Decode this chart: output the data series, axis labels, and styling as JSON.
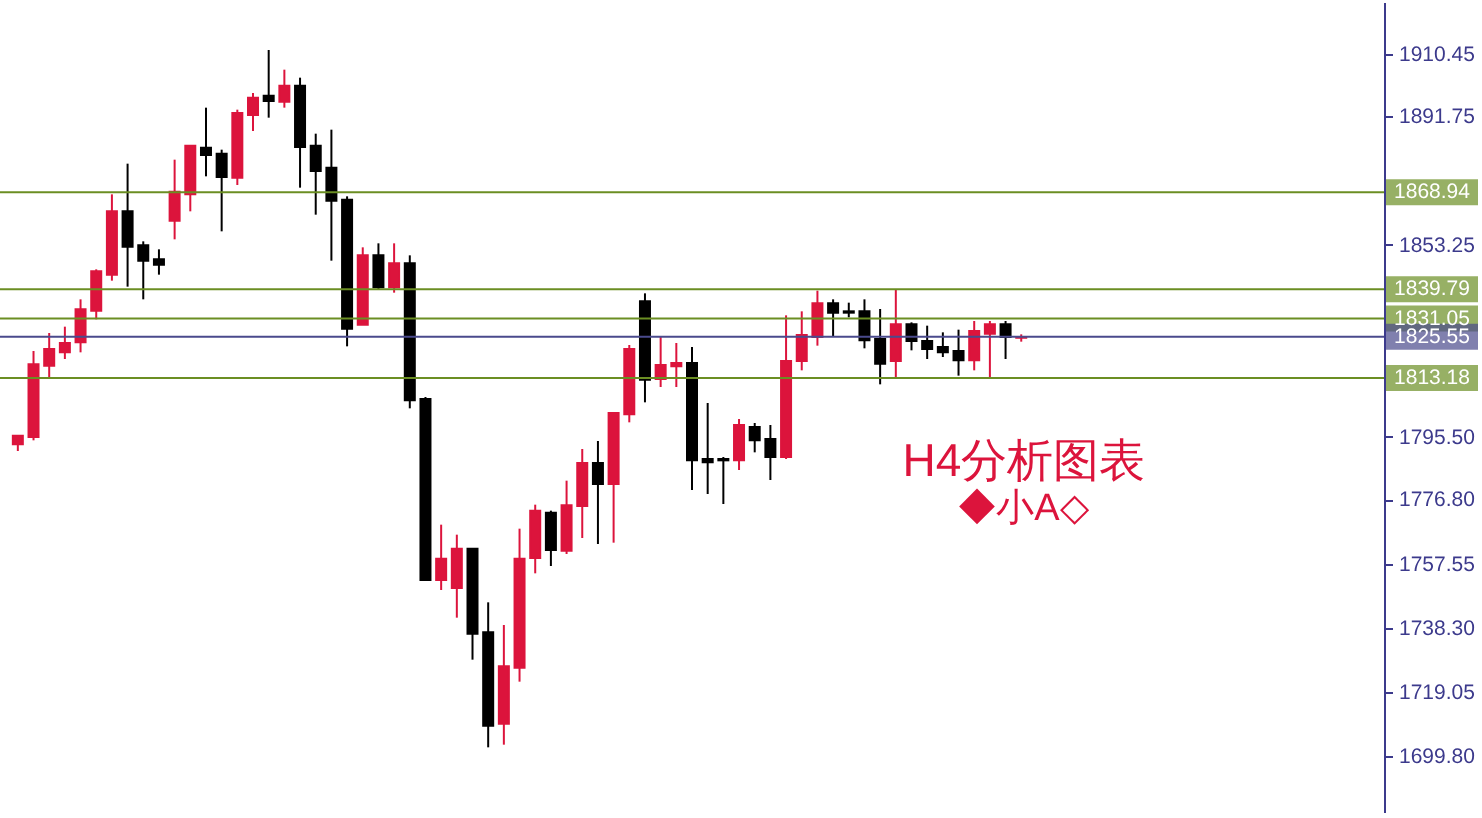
{
  "chart_data": {
    "type": "candlestick",
    "categories": [
      null,
      null,
      null,
      null,
      null,
      null,
      null,
      null,
      null,
      null,
      null,
      null,
      null,
      null,
      null,
      null,
      null,
      null,
      null,
      null,
      null,
      null,
      null,
      null,
      null,
      null,
      null,
      null,
      null,
      null,
      null,
      null,
      null,
      null,
      null,
      null,
      null,
      null,
      null,
      null,
      null,
      null,
      null,
      null,
      null,
      null,
      null,
      null,
      null,
      null,
      null,
      null,
      null,
      null,
      null,
      null,
      null,
      null,
      null,
      null,
      null,
      null,
      null,
      null,
      null,
      null,
      null,
      null,
      null,
      null,
      null,
      null,
      null,
      null,
      null,
      null,
      null,
      null,
      null,
      null,
      null,
      null,
      null,
      null,
      null,
      null,
      null
    ],
    "ohlc": [
      [
        1793.3,
        1795.9,
        1791.3,
        1795.9
      ],
      [
        1795.5,
        1821.3,
        1794.5,
        1817.3
      ],
      [
        1816.9,
        1826.7,
        1812.9,
        1821.9
      ],
      [
        1820.9,
        1828.6,
        1818.9,
        1823.7
      ],
      [
        1823.9,
        1836.8,
        1820.9,
        1833.8
      ],
      [
        1833.4,
        1845.8,
        1830.8,
        1845.2
      ],
      [
        1844.2,
        1868.3,
        1842.4,
        1863.2
      ],
      [
        1863.2,
        1877.5,
        1840.6,
        1852.6
      ],
      [
        1853.0,
        1854.2,
        1836.8,
        1848.4
      ],
      [
        1848.8,
        1851.8,
        1844.2,
        1847.2
      ],
      [
        1860.4,
        1878.7,
        1854.8,
        1869.1
      ],
      [
        1868.3,
        1882.9,
        1863.2,
        1882.9
      ],
      [
        1882.3,
        1894.3,
        1873.7,
        1880.1
      ],
      [
        1880.5,
        1881.7,
        1857.2,
        1873.5
      ],
      [
        1873.3,
        1893.7,
        1871.1,
        1892.7
      ],
      [
        1892.1,
        1898.7,
        1887.3,
        1897.3
      ],
      [
        1897.9,
        1911.6,
        1891.3,
        1896.3
      ],
      [
        1896.1,
        1905.7,
        1894.3,
        1900.9
      ],
      [
        1900.9,
        1903.3,
        1870.3,
        1882.5
      ],
      [
        1882.9,
        1886.5,
        1862.2,
        1875.3
      ],
      [
        1876.3,
        1887.7,
        1848.4,
        1866.4
      ],
      [
        1866.7,
        1867.7,
        1822.7,
        1828.0
      ],
      [
        1829.2,
        1852.4,
        1829.2,
        1850.0
      ],
      [
        1850.0,
        1853.6,
        1839.6,
        1840.4
      ],
      [
        1840.4,
        1853.6,
        1838.8,
        1847.6
      ],
      [
        1847.6,
        1850.0,
        1804.1,
        1806.5
      ],
      [
        1806.9,
        1807.5,
        1752.6,
        1752.6
      ],
      [
        1752.6,
        1769.2,
        1749.6,
        1759.0
      ],
      [
        1750.2,
        1766.2,
        1741.3,
        1762.0
      ],
      [
        1762.0,
        1762.0,
        1728.7,
        1736.5
      ],
      [
        1736.9,
        1745.9,
        1702.4,
        1708.9
      ],
      [
        1709.5,
        1739.1,
        1703.2,
        1726.7
      ],
      [
        1726.3,
        1768.0,
        1722.1,
        1759.0
      ],
      [
        1759.2,
        1775.2,
        1754.6,
        1773.4
      ],
      [
        1772.8,
        1773.4,
        1756.8,
        1761.6
      ],
      [
        1761.4,
        1782.4,
        1760.4,
        1775.0
      ],
      [
        1774.8,
        1791.9,
        1765.2,
        1787.7
      ],
      [
        1787.7,
        1794.3,
        1763.4,
        1781.4
      ],
      [
        1781.4,
        1802.7,
        1763.8,
        1802.7
      ],
      [
        1802.3,
        1823.1,
        1799.9,
        1821.9
      ],
      [
        1836.2,
        1838.6,
        1805.9,
        1812.7
      ],
      [
        1812.9,
        1825.5,
        1810.5,
        1817.1
      ],
      [
        1816.7,
        1823.7,
        1810.5,
        1817.7
      ],
      [
        1817.7,
        1822.5,
        1779.6,
        1788.5
      ],
      [
        1788.9,
        1805.7,
        1778.4,
        1787.9
      ],
      [
        1788.9,
        1789.5,
        1775.4,
        1788.5
      ],
      [
        1788.5,
        1800.9,
        1785.6,
        1799.1
      ],
      [
        1798.5,
        1799.7,
        1790.9,
        1794.5
      ],
      [
        1794.9,
        1799.1,
        1782.6,
        1789.5
      ],
      [
        1789.5,
        1832.0,
        1788.9,
        1818.3
      ],
      [
        1818.3,
        1833.2,
        1815.5,
        1826.1
      ],
      [
        1825.5,
        1839.4,
        1822.9,
        1835.6
      ],
      [
        1835.6,
        1836.8,
        1825.7,
        1832.8
      ],
      [
        1833.2,
        1835.8,
        1831.4,
        1832.8
      ],
      [
        1833.2,
        1836.8,
        1822.1,
        1824.5
      ],
      [
        1824.9,
        1833.9,
        1811.3,
        1817.5
      ],
      [
        1818.3,
        1839.6,
        1812.9,
        1829.3
      ],
      [
        1829.3,
        1829.9,
        1821.5,
        1824.3
      ],
      [
        1824.3,
        1828.9,
        1818.9,
        1821.9
      ],
      [
        1822.5,
        1826.9,
        1819.5,
        1820.9
      ],
      [
        1821.3,
        1827.7,
        1813.9,
        1818.5
      ],
      [
        1818.5,
        1830.3,
        1815.5,
        1827.3
      ],
      [
        1826.5,
        1830.3,
        1812.9,
        1829.3
      ],
      [
        1829.3,
        1830.3,
        1818.9,
        1825.5
      ],
      [
        1825.3,
        1826.3,
        1824.1,
        1825.5
      ],
      null,
      null,
      null,
      null,
      null,
      null,
      null,
      null,
      null,
      null,
      null,
      null,
      null,
      null,
      null,
      null,
      null,
      null,
      null,
      null,
      null,
      null
    ],
    "colors": [
      "#dc143c",
      "#dc143c",
      "#dc143c",
      "#dc143c",
      "#dc143c",
      "#dc143c",
      "#dc143c",
      "#000000",
      "#000000",
      "#000000",
      "#dc143c",
      "#dc143c",
      "#000000",
      "#000000",
      "#dc143c",
      "#dc143c",
      "#000000",
      "#dc143c",
      "#000000",
      "#000000",
      "#000000",
      "#000000",
      "#dc143c",
      "#000000",
      "#dc143c",
      "#000000",
      "#000000",
      "#dc143c",
      "#dc143c",
      "#000000",
      "#000000",
      "#dc143c",
      "#dc143c",
      "#dc143c",
      "#000000",
      "#dc143c",
      "#dc143c",
      "#000000",
      "#dc143c",
      "#dc143c",
      "#000000",
      "#dc143c",
      "#dc143c",
      "#000000",
      "#000000",
      "#000000",
      "#dc143c",
      "#000000",
      "#000000",
      "#dc143c",
      "#dc143c",
      "#dc143c",
      "#000000",
      "#000000",
      "#000000",
      "#000000",
      "#dc143c",
      "#000000",
      "#000000",
      "#000000",
      "#000000",
      "#dc143c",
      "#dc143c",
      "#000000",
      "#dc143c",
      null,
      null,
      null,
      null,
      null,
      null,
      null,
      null,
      null,
      null,
      null,
      null,
      null,
      null,
      null,
      null,
      null,
      null,
      null,
      null,
      null,
      null
    ],
    "ylim": [
      1683,
      1926
    ],
    "yticks": [
      1910.45,
      1891.75,
      1853.25,
      {
        "value": 1795.5,
        "label": "1795.50"
      },
      {
        "value": 1776.8,
        "label": "1776.80"
      },
      1757.55,
      {
        "value": 1738.3,
        "label": "1738.30"
      },
      1719.05,
      {
        "value": 1699.8,
        "label": "1699.80"
      }
    ],
    "tick_labels": "y",
    "ref_lines": [
      {
        "axis": "y",
        "value": 1868.94,
        "label": "1868.94",
        "color": "#6b8e23"
      },
      {
        "axis": "y",
        "value": 1839.79,
        "label": "1839.79",
        "color": "#6b8e23"
      },
      {
        "axis": "y",
        "value": 1831.05,
        "label": "1831.05",
        "color": "#6b8e23"
      },
      {
        "axis": "y",
        "value": 1825.55,
        "label": "1825.55",
        "color": "#4a4a8c"
      },
      {
        "axis": "y",
        "value": 1813.18,
        "label": "1813.18",
        "color": "#6b8e23"
      }
    ],
    "annotations": [
      "H4分析图表",
      "◆小A◇"
    ]
  }
}
